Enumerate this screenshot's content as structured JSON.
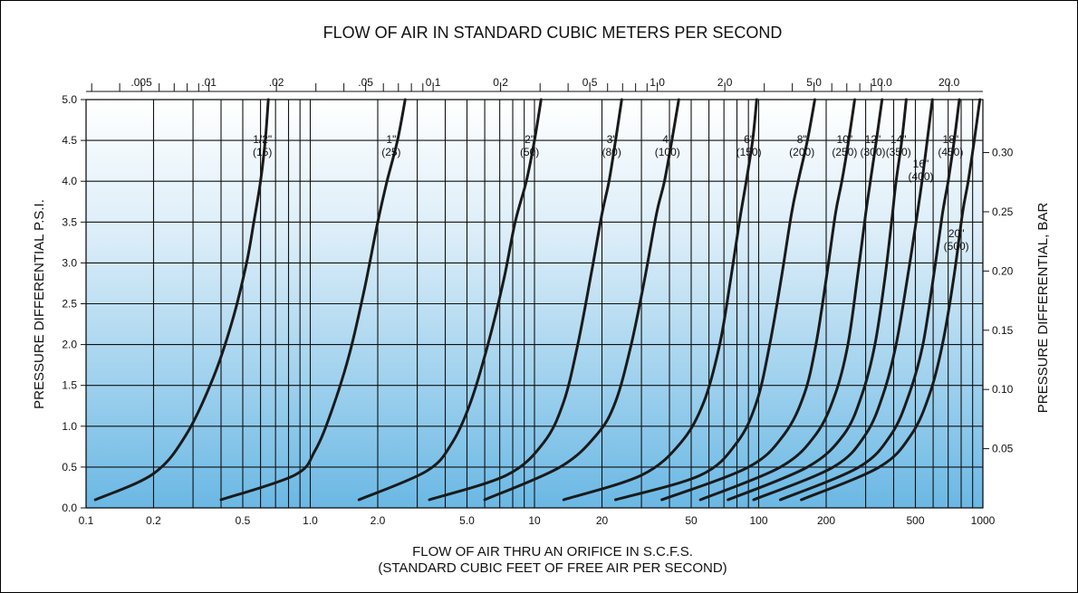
{
  "chart_data": {
    "type": "line",
    "title": "FLOW OF AIR IN STANDARD CUBIC METERS PER SECOND",
    "xlabel_line1": "FLOW OF AIR THRU AN ORIFICE IN S.C.F.S.",
    "xlabel_line2": "(STANDARD CUBIC FEET OF FREE AIR PER SECOND)",
    "ylabel": "PRESSURE DIFFERENTIAL P.S.I.",
    "ylabel_right": "PRESSURE DIFFERENTIAL, BAR",
    "x_scale": "log",
    "xlim": [
      0.1,
      1000
    ],
    "ylim": [
      0,
      5
    ],
    "grid": true,
    "x_ticks": [
      0.1,
      0.2,
      0.5,
      1.0,
      2.0,
      5.0,
      10,
      20,
      50,
      100,
      200,
      500,
      1000
    ],
    "x_tick_labels": [
      "0.1",
      "0.2",
      "0.5",
      "1.0",
      "2.0",
      "5.0",
      "10",
      "20",
      "50",
      "100",
      "200",
      "500",
      "1000"
    ],
    "x_gridlines": [
      0.2,
      0.3,
      0.4,
      0.5,
      0.6,
      0.7,
      0.8,
      0.9,
      1.0,
      2.0,
      3.0,
      4.0,
      5.0,
      6.0,
      7.0,
      8.0,
      9.0,
      10,
      20,
      30,
      40,
      50,
      60,
      70,
      80,
      90,
      100,
      200,
      300,
      400,
      500,
      600,
      700,
      800,
      900
    ],
    "y_ticks": [
      0.0,
      0.5,
      1.0,
      1.5,
      2.0,
      2.5,
      3.0,
      3.5,
      4.0,
      4.5,
      5.0
    ],
    "y_tick_labels": [
      "0.0",
      "0.5",
      "1.0",
      "1.5",
      "2.0",
      "2.5",
      "3.0",
      "3.5",
      "4.0",
      "4.5",
      "5.0"
    ],
    "top_axis": {
      "ticks_m3s": [
        0.005,
        0.01,
        0.02,
        0.05,
        0.1,
        0.2,
        0.5,
        1.0,
        2.0,
        5.0,
        10.0,
        20.0
      ],
      "tick_labels": [
        ".005",
        ".01",
        ".02",
        ".05",
        "0.1",
        "0.2",
        "0.5",
        "1.0",
        "2.0",
        "5.0",
        "10.0",
        "20.0"
      ],
      "minor_ticks_m3s": [
        0.003,
        0.004,
        0.006,
        0.007,
        0.008,
        0.009,
        0.03,
        0.04,
        0.06,
        0.07,
        0.08,
        0.09,
        0.3,
        0.4,
        0.6,
        0.7,
        0.8,
        0.9,
        3.0,
        4.0,
        6.0,
        7.0,
        8.0,
        9.0,
        30.0
      ]
    },
    "right_axis": {
      "ticks_bar": [
        0.05,
        0.1,
        0.15,
        0.2,
        0.25,
        0.3
      ],
      "tick_labels": [
        "0.05",
        "0.10",
        "0.15",
        "0.20",
        "0.25",
        "0.30"
      ]
    },
    "series": [
      {
        "name": "1/2\"",
        "metric": "(15)",
        "label_psi": 4.2,
        "points": [
          [
            0.11,
            0.1
          ],
          [
            0.2,
            0.42
          ],
          [
            0.28,
            0.9
          ],
          [
            0.37,
            1.6
          ],
          [
            0.45,
            2.3
          ],
          [
            0.52,
            3.0
          ],
          [
            0.56,
            3.5
          ],
          [
            0.6,
            4.0
          ],
          [
            0.63,
            4.5
          ],
          [
            0.65,
            5.0
          ]
        ]
      },
      {
        "name": "1\"",
        "metric": "(25)",
        "label_psi": 4.2,
        "points": [
          [
            0.4,
            0.1
          ],
          [
            0.85,
            0.4
          ],
          [
            1.05,
            0.7
          ],
          [
            1.25,
            1.2
          ],
          [
            1.5,
            1.9
          ],
          [
            1.75,
            2.7
          ],
          [
            2.0,
            3.5
          ],
          [
            2.2,
            4.0
          ],
          [
            2.45,
            4.5
          ],
          [
            2.65,
            5.0
          ]
        ]
      },
      {
        "name": "2\"",
        "metric": "(50)",
        "label_psi": 4.2,
        "points": [
          [
            1.65,
            0.1
          ],
          [
            3.3,
            0.45
          ],
          [
            4.3,
            0.8
          ],
          [
            5.2,
            1.3
          ],
          [
            6.2,
            2.0
          ],
          [
            7.3,
            2.8
          ],
          [
            8.2,
            3.5
          ],
          [
            9.2,
            4.0
          ],
          [
            10.0,
            4.5
          ],
          [
            10.7,
            5.0
          ]
        ]
      },
      {
        "name": "3\"",
        "metric": "(80)",
        "label_psi": 4.2,
        "points": [
          [
            3.4,
            0.1
          ],
          [
            7.5,
            0.4
          ],
          [
            11.0,
            0.8
          ],
          [
            13.5,
            1.3
          ],
          [
            15.6,
            2.0
          ],
          [
            18.0,
            2.9
          ],
          [
            20.0,
            3.6
          ],
          [
            21.5,
            4.0
          ],
          [
            23.0,
            4.5
          ],
          [
            24.5,
            5.0
          ]
        ]
      },
      {
        "name": "4\"",
        "metric": "(100)",
        "label_psi": 4.2,
        "points": [
          [
            6.0,
            0.1
          ],
          [
            13.0,
            0.5
          ],
          [
            19.0,
            0.9
          ],
          [
            23.0,
            1.3
          ],
          [
            27.0,
            2.0
          ],
          [
            31.0,
            2.8
          ],
          [
            35.0,
            3.6
          ],
          [
            38.0,
            4.0
          ],
          [
            41.0,
            4.5
          ],
          [
            44.0,
            5.0
          ]
        ]
      },
      {
        "name": "6\"",
        "metric": "(150)",
        "label_psi": 4.2,
        "points": [
          [
            13.5,
            0.1
          ],
          [
            30.0,
            0.4
          ],
          [
            45.0,
            0.8
          ],
          [
            57.0,
            1.3
          ],
          [
            67.0,
            2.0
          ],
          [
            75.0,
            2.8
          ],
          [
            82.0,
            3.5
          ],
          [
            88.0,
            4.0
          ],
          [
            94.0,
            4.5
          ],
          [
            98.0,
            5.0
          ]
        ]
      },
      {
        "name": "8\"",
        "metric": "(200)",
        "label_psi": 4.2,
        "points": [
          [
            23.0,
            0.1
          ],
          [
            55.0,
            0.4
          ],
          [
            80.0,
            0.8
          ],
          [
            98.0,
            1.3
          ],
          [
            112.0,
            2.0
          ],
          [
            126.0,
            2.8
          ],
          [
            140.0,
            3.6
          ],
          [
            150.0,
            4.0
          ],
          [
            165.0,
            4.5
          ],
          [
            178.0,
            5.0
          ]
        ]
      },
      {
        "name": "10\"",
        "metric": "(250)",
        "label_psi": 4.2,
        "points": [
          [
            37.0,
            0.1
          ],
          [
            90.0,
            0.5
          ],
          [
            130.0,
            0.9
          ],
          [
            160.0,
            1.4
          ],
          [
            180.0,
            2.0
          ],
          [
            200.0,
            2.8
          ],
          [
            220.0,
            3.6
          ],
          [
            235.0,
            4.0
          ],
          [
            252.0,
            4.5
          ],
          [
            268.0,
            5.0
          ]
        ]
      },
      {
        "name": "12\"",
        "metric": "(300)",
        "label_psi": 4.2,
        "points": [
          [
            55.0,
            0.1
          ],
          [
            125.0,
            0.5
          ],
          [
            180.0,
            0.9
          ],
          [
            220.0,
            1.4
          ],
          [
            250.0,
            2.0
          ],
          [
            275.0,
            2.8
          ],
          [
            300.0,
            3.6
          ],
          [
            315.0,
            4.0
          ],
          [
            335.0,
            4.5
          ],
          [
            355.0,
            5.0
          ]
        ]
      },
      {
        "name": "14\"",
        "metric": "(350)",
        "label_psi": 4.2,
        "points": [
          [
            73.0,
            0.1
          ],
          [
            165.0,
            0.5
          ],
          [
            240.0,
            0.9
          ],
          [
            290.0,
            1.4
          ],
          [
            330.0,
            2.0
          ],
          [
            365.0,
            2.8
          ],
          [
            395.0,
            3.6
          ],
          [
            410.0,
            4.0
          ],
          [
            435.0,
            4.5
          ],
          [
            455.0,
            5.0
          ]
        ]
      },
      {
        "name": "16\"",
        "metric": "(400)",
        "label_psi": 3.9,
        "points": [
          [
            95.0,
            0.1
          ],
          [
            215.0,
            0.5
          ],
          [
            300.0,
            0.9
          ],
          [
            360.0,
            1.4
          ],
          [
            410.0,
            2.0
          ],
          [
            460.0,
            2.8
          ],
          [
            510.0,
            3.6
          ],
          [
            535.0,
            4.0
          ],
          [
            565.0,
            4.5
          ],
          [
            595.0,
            5.0
          ]
        ]
      },
      {
        "name": "18\"",
        "metric": "(450)",
        "label_psi": 4.2,
        "points": [
          [
            125.0,
            0.1
          ],
          [
            280.0,
            0.5
          ],
          [
            390.0,
            0.9
          ],
          [
            470.0,
            1.4
          ],
          [
            540.0,
            2.0
          ],
          [
            600.0,
            2.8
          ],
          [
            660.0,
            3.6
          ],
          [
            700.0,
            4.0
          ],
          [
            745.0,
            4.5
          ],
          [
            785.0,
            5.0
          ]
        ]
      },
      {
        "name": "20\"",
        "metric": "(500)",
        "label_psi": 3.05,
        "points": [
          [
            155.0,
            0.1
          ],
          [
            345.0,
            0.5
          ],
          [
            480.0,
            0.9
          ],
          [
            580.0,
            1.4
          ],
          [
            660.0,
            2.0
          ],
          [
            740.0,
            2.8
          ],
          [
            810.0,
            3.6
          ],
          [
            860.0,
            4.0
          ],
          [
            915.0,
            4.5
          ],
          [
            970.0,
            5.0
          ]
        ]
      }
    ]
  }
}
